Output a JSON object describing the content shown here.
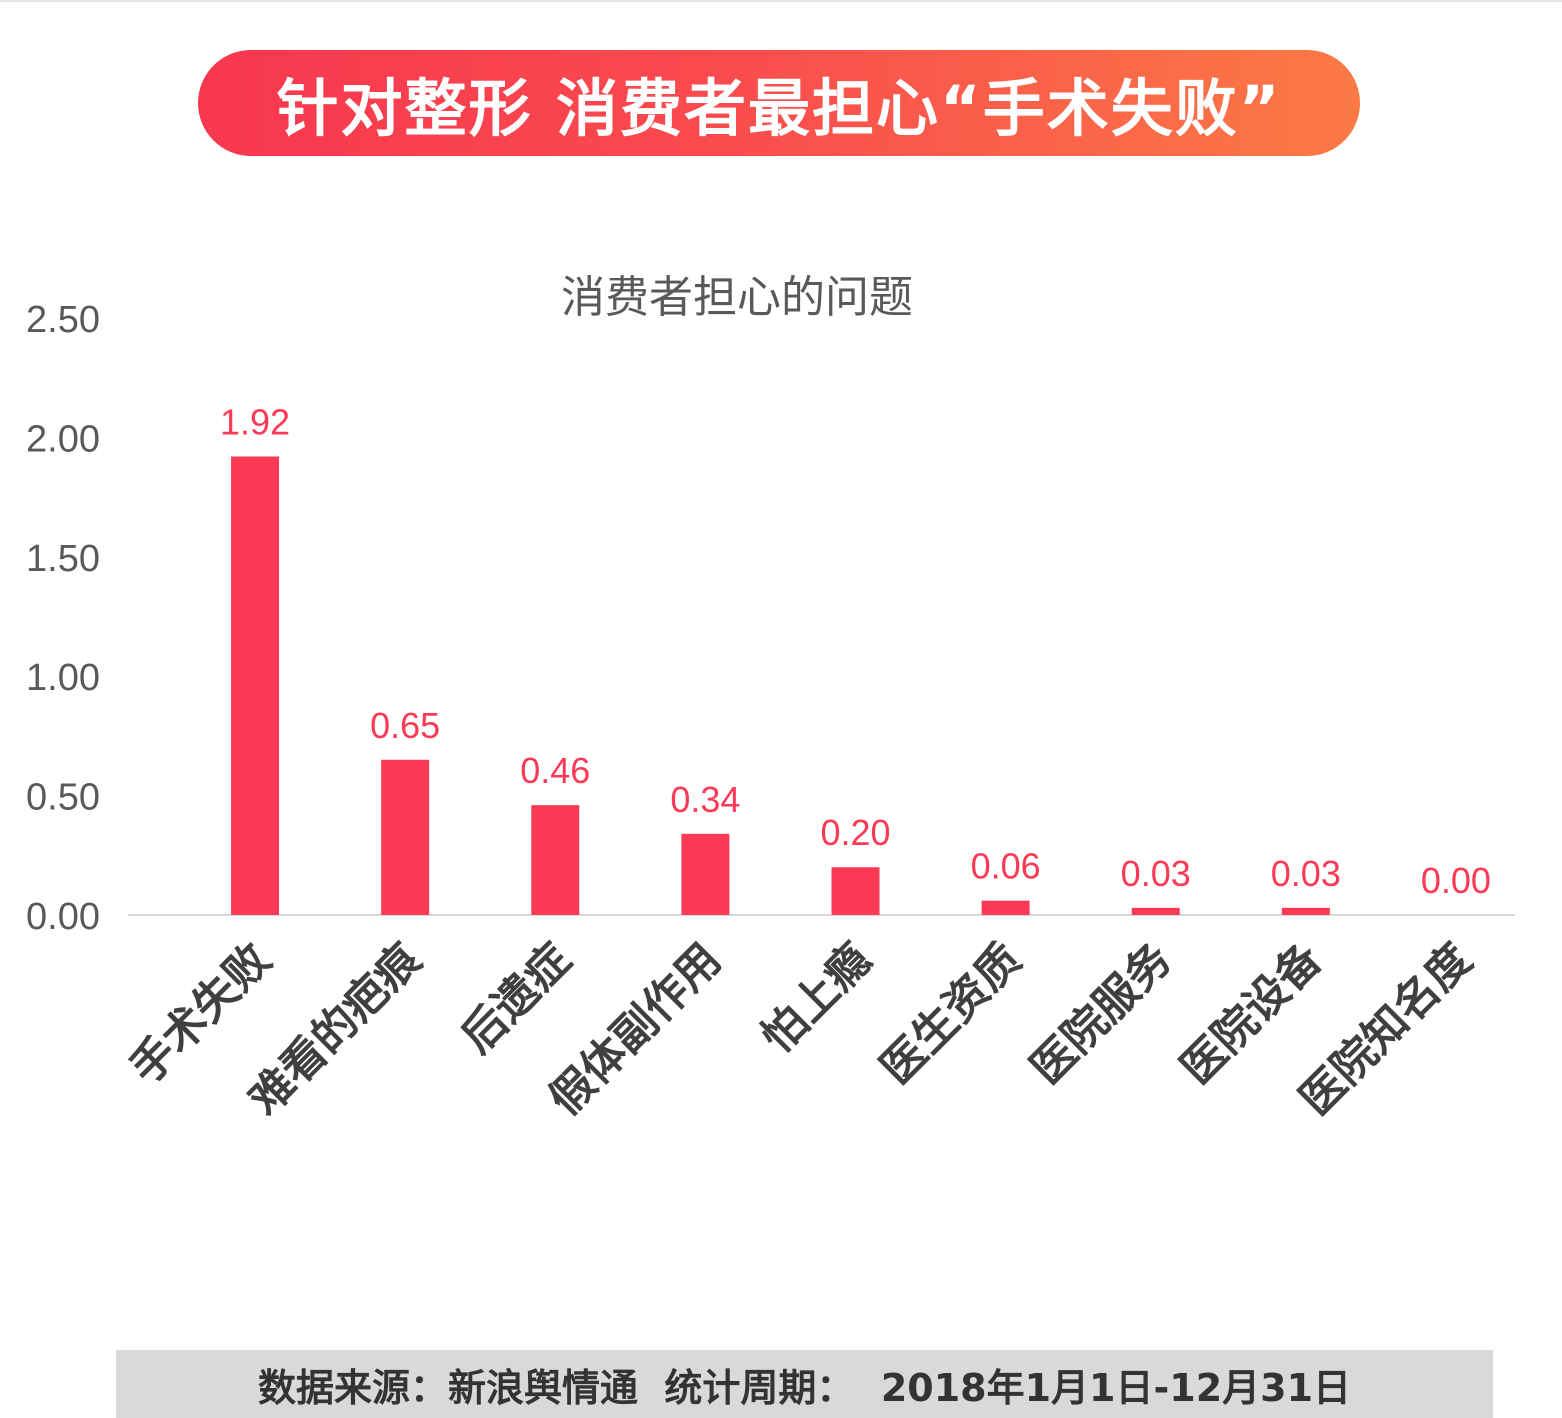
{
  "banner": {
    "title": "针对整形 消费者最担心“手术失败”"
  },
  "chart_data": {
    "type": "bar",
    "title": "消费者担心的问题",
    "categories": [
      "手术失败",
      "难看的疤痕",
      "后遗症",
      "假体副作用",
      "怕上瘾",
      "医生资质",
      "医院服务",
      "医院设备",
      "医院知名度"
    ],
    "values": [
      1.92,
      0.65,
      0.46,
      0.34,
      0.2,
      0.06,
      0.03,
      0.03,
      0.0
    ],
    "data_labels": [
      "1.92",
      "0.65",
      "0.46",
      "0.34",
      "0.20",
      "0.06",
      "0.03",
      "0.03",
      "0.00"
    ],
    "yticks": [
      "0.00",
      "0.50",
      "1.00",
      "1.50",
      "2.00",
      "2.50"
    ],
    "ylim": [
      0,
      2.5
    ],
    "xlabel": "",
    "ylabel": "",
    "grid": false,
    "colors": {
      "bar": "#fd3a56",
      "label": "#fd3a56",
      "tick": "#595959",
      "axis": "#d9d9d9"
    }
  },
  "footer": {
    "text": "数据来源：新浪舆情通  统计周期：  2018年1月1日-12月31日"
  }
}
